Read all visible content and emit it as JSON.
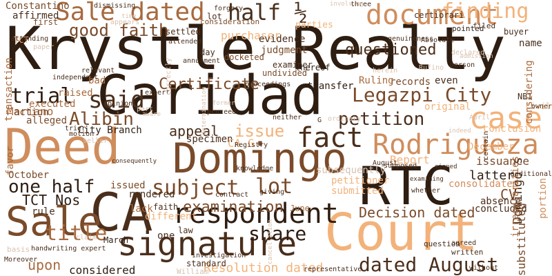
{
  "palette": {
    "background": "#ffffff",
    "darkest": "#2e1d11",
    "dark": "#4a2e1b",
    "medium": "#7a4b2a",
    "warm": "#a86a3e",
    "light": "#cf8d5c",
    "lightest": "#f2b27a",
    "pale": "#d9c2ae"
  },
  "words": [
    {
      "text": "Krystle Realty",
      "color": "darkest",
      "vertical": false
    },
    {
      "text": "Caridad",
      "color": "darkest",
      "vertical": false
    },
    {
      "text": "Deed",
      "color": "light",
      "vertical": false
    },
    {
      "text": "Domingo",
      "color": "medium",
      "vertical": false
    },
    {
      "text": "RTC",
      "color": "darkest",
      "vertical": false
    },
    {
      "text": "CA",
      "color": "dark",
      "vertical": false
    },
    {
      "text": "Court",
      "color": "lightest",
      "vertical": false
    },
    {
      "text": "Sale",
      "color": "medium",
      "vertical": false
    },
    {
      "text": "signature",
      "color": "dark",
      "vertical": false
    },
    {
      "text": "respondent",
      "color": "darkest",
      "vertical": false
    },
    {
      "text": "Rodrigueza",
      "color": "light",
      "vertical": false
    },
    {
      "text": "case",
      "color": "lightest",
      "vertical": false
    },
    {
      "text": "document",
      "color": "light",
      "vertical": false
    },
    {
      "text": "Sale dated",
      "color": "warm",
      "vertical": false
    },
    {
      "text": "fact",
      "color": "dark",
      "vertical": false
    },
    {
      "text": "subject",
      "color": "medium",
      "vertical": false
    },
    {
      "text": "lot",
      "color": "medium",
      "vertical": false
    },
    {
      "text": "said",
      "color": "dark",
      "vertical": false
    },
    {
      "text": "dated August",
      "color": "dark",
      "vertical": false
    },
    {
      "text": "title",
      "color": "warm",
      "vertical": false
    },
    {
      "text": "share",
      "color": "darkest",
      "vertical": false
    },
    {
      "text": "Legazpi City",
      "color": "medium",
      "vertical": false
    },
    {
      "text": "petition",
      "color": "dark",
      "vertical": false
    },
    {
      "text": "finding",
      "color": "lightest",
      "vertical": false
    },
    {
      "text": "half ½",
      "color": "dark",
      "vertical": false
    },
    {
      "text": "one half",
      "color": "darkest",
      "vertical": false
    },
    {
      "text": "good faith",
      "color": "medium",
      "vertical": false
    },
    {
      "text": "Certificate",
      "color": "medium",
      "vertical": false
    },
    {
      "text": "trial",
      "color": "darkest",
      "vertical": false
    },
    {
      "text": "Alibin",
      "color": "medium",
      "vertical": false
    },
    {
      "text": "issue",
      "color": "lightest",
      "vertical": false
    },
    {
      "text": "appeal",
      "color": "dark",
      "vertical": false
    },
    {
      "text": "examination",
      "color": "medium",
      "vertical": false
    },
    {
      "text": "questioned",
      "color": "dark",
      "vertical": false
    },
    {
      "text": "Decision dated",
      "color": "medium",
      "vertical": false
    },
    {
      "text": "Constantino",
      "color": "medium",
      "vertical": false
    },
    {
      "text": "affirmed",
      "color": "dark",
      "vertical": false
    },
    {
      "text": "TCT Nos",
      "color": "darkest",
      "vertical": false
    },
    {
      "text": "upon",
      "color": "warm",
      "vertical": false
    },
    {
      "text": "Resolution dated",
      "color": "lightest",
      "vertical": false
    },
    {
      "text": "considered",
      "color": "darkest",
      "vertical": false
    },
    {
      "text": "purchaser",
      "color": "lightest",
      "vertical": false
    },
    {
      "text": "evidence",
      "color": "dark",
      "vertical": false
    },
    {
      "text": "judgment",
      "color": "medium",
      "vertical": false
    },
    {
      "text": "transfer",
      "color": "darkest",
      "vertical": false
    },
    {
      "text": "records",
      "color": "medium",
      "vertical": false
    },
    {
      "text": "Ruling",
      "color": "warm",
      "vertical": false
    },
    {
      "text": "even",
      "color": "dark",
      "vertical": false
    },
    {
      "text": "CV",
      "color": "medium",
      "vertical": false
    },
    {
      "text": "latter",
      "color": "darkest",
      "vertical": false
    },
    {
      "text": "issuance",
      "color": "medium",
      "vertical": false
    },
    {
      "text": "Report",
      "color": "lightest",
      "vertical": false
    },
    {
      "text": "December",
      "color": "lightest",
      "vertical": false
    },
    {
      "text": "conclusion",
      "color": "lightest",
      "vertical": false
    },
    {
      "text": "consolidated",
      "color": "light",
      "vertical": false
    },
    {
      "text": "concluded",
      "color": "dark",
      "vertical": false
    },
    {
      "text": "absence",
      "color": "dark",
      "vertical": false
    },
    {
      "text": "Mariano",
      "color": "warm",
      "vertical": false
    },
    {
      "text": "action",
      "color": "medium",
      "vertical": false
    },
    {
      "text": "alleged",
      "color": "medium",
      "vertical": false
    },
    {
      "text": "executed",
      "color": "warm",
      "vertical": false
    },
    {
      "text": "raised",
      "color": "warm",
      "vertical": false
    },
    {
      "text": "City Branch",
      "color": "darkest",
      "vertical": false
    },
    {
      "text": "October",
      "color": "medium",
      "vertical": false
    },
    {
      "text": "rendered",
      "color": "dark",
      "vertical": false
    },
    {
      "text": "issued",
      "color": "medium",
      "vertical": false
    },
    {
      "text": "rule",
      "color": "dark",
      "vertical": false
    },
    {
      "text": "lack",
      "color": "warm",
      "vertical": false
    },
    {
      "text": "different",
      "color": "lightest",
      "vertical": false
    },
    {
      "text": "law",
      "color": "dark",
      "vertical": false
    },
    {
      "text": "one",
      "color": "dark",
      "vertical": false
    },
    {
      "text": "faith",
      "color": "dark",
      "vertical": false
    },
    {
      "text": "March",
      "color": "darkest",
      "vertical": false
    },
    {
      "text": "June",
      "color": "warm",
      "vertical": false
    },
    {
      "text": "submitted",
      "color": "lightest",
      "vertical": false
    },
    {
      "text": "petitioner",
      "color": "lightest",
      "vertical": false
    },
    {
      "text": "specimen",
      "color": "dark",
      "vertical": false
    },
    {
      "text": "CA G",
      "color": "lightest",
      "vertical": false
    },
    {
      "text": "first",
      "color": "medium",
      "vertical": false
    },
    {
      "text": "TCT",
      "color": "lightest",
      "vertical": false
    },
    {
      "text": "transaction",
      "color": "warm",
      "vertical": true
    },
    {
      "text": "favor",
      "color": "warm",
      "vertical": true
    },
    {
      "text": "Domingo s",
      "color": "dark",
      "vertical": true
    },
    {
      "text": "substituted",
      "color": "medium",
      "vertical": true
    },
    {
      "text": "portion",
      "color": "light",
      "vertical": true
    },
    {
      "text": "settled",
      "color": "dark",
      "vertical": false
    },
    {
      "text": "consideration",
      "color": "medium",
      "vertical": false
    },
    {
      "text": "docketed",
      "color": "medium",
      "vertical": false
    },
    {
      "text": "undivided",
      "color": "medium",
      "vertical": false
    },
    {
      "text": "examiner",
      "color": "dark",
      "vertical": false
    },
    {
      "text": "thereof",
      "color": "darkest",
      "vertical": false
    },
    {
      "text": "pointed",
      "color": "darkest",
      "vertical": false
    },
    {
      "text": "filed",
      "color": "dark",
      "vertical": false
    },
    {
      "text": "buyer",
      "color": "dark",
      "vertical": false
    },
    {
      "text": "name",
      "color": "dark",
      "vertical": false
    },
    {
      "text": "NBI",
      "color": "dark",
      "vertical": false
    },
    {
      "text": "Civil",
      "color": "lightest",
      "vertical": false
    },
    {
      "text": "original",
      "color": "lightest",
      "vertical": false
    },
    {
      "text": "parties",
      "color": "lightest",
      "vertical": false
    },
    {
      "text": "certiorari",
      "color": "dark",
      "vertical": false
    },
    {
      "text": "lot",
      "color": "dark",
      "vertical": false
    },
    {
      "text": "forgery",
      "color": "dark",
      "vertical": false
    },
    {
      "text": "three",
      "color": "dark",
      "vertical": false
    },
    {
      "text": "involving",
      "color": "pale",
      "vertical": false
    },
    {
      "text": "dismissing",
      "color": "dark",
      "vertical": false
    },
    {
      "text": "time",
      "color": "pale",
      "vertical": false
    },
    {
      "text": "appears",
      "color": "pale",
      "vertical": false
    },
    {
      "text": "Absolute",
      "color": "dark",
      "vertical": false
    },
    {
      "text": "genuineness",
      "color": "dark",
      "vertical": false
    },
    {
      "text": "attended",
      "color": "dark",
      "vertical": false
    },
    {
      "text": "annulment",
      "color": "dark",
      "vertical": false
    },
    {
      "text": "day",
      "color": "dark",
      "vertical": false
    },
    {
      "text": "relevant",
      "color": "dark",
      "vertical": false
    },
    {
      "text": "independent",
      "color": "dark",
      "vertical": false
    },
    {
      "text": "bad",
      "color": "warm",
      "vertical": false
    },
    {
      "text": "expert",
      "color": "dark",
      "vertical": false
    },
    {
      "text": "opinion",
      "color": "dark",
      "vertical": false
    },
    {
      "text": "part",
      "color": "pale",
      "vertical": false
    },
    {
      "text": "aware",
      "color": "pale",
      "vertical": false
    },
    {
      "text": "proceed",
      "color": "dark",
      "vertical": false
    },
    {
      "text": "former",
      "color": "pale",
      "vertical": false
    },
    {
      "text": "neither",
      "color": "dark",
      "vertical": false
    },
    {
      "text": "G",
      "color": "dark",
      "vertical": false
    },
    {
      "text": "proceedings",
      "color": "dark",
      "vertical": false
    },
    {
      "text": "motion",
      "color": "dark",
      "vertical": false
    },
    {
      "text": "seller",
      "color": "pale",
      "vertical": false
    },
    {
      "text": "consequently",
      "color": "dark",
      "vertical": false
    },
    {
      "text": "Registry",
      "color": "dark",
      "vertical": false
    },
    {
      "text": "knowledge",
      "color": "dark",
      "vertical": false
    },
    {
      "text": "giving",
      "color": "dark",
      "vertical": false
    },
    {
      "text": "contract",
      "color": "dark",
      "vertical": false
    },
    {
      "text": "standard",
      "color": "dark",
      "vertical": false
    },
    {
      "text": "William",
      "color": "pale",
      "vertical": false
    },
    {
      "text": "investigation",
      "color": "dark",
      "vertical": false
    },
    {
      "text": "claim",
      "color": "pale",
      "vertical": false
    },
    {
      "text": "handwriting expert",
      "color": "dark",
      "vertical": false
    },
    {
      "text": "basis",
      "color": "pale",
      "vertical": false
    },
    {
      "text": "Moreover",
      "color": "dark",
      "vertical": false
    },
    {
      "text": "paper",
      "color": "pale",
      "vertical": false
    },
    {
      "text": "attending",
      "color": "dark",
      "vertical": false
    },
    {
      "text": "trier",
      "color": "dark",
      "vertical": false
    },
    {
      "text": "question",
      "color": "dark",
      "vertical": false
    },
    {
      "text": "agreed",
      "color": "dark",
      "vertical": false
    },
    {
      "text": "written",
      "color": "dark",
      "vertical": false
    },
    {
      "text": "without",
      "color": "dark",
      "vertical": false
    },
    {
      "text": "representative",
      "color": "dark",
      "vertical": false
    },
    {
      "text": "supposed",
      "color": "dark",
      "vertical": false
    },
    {
      "text": "August",
      "color": "dark",
      "vertical": false
    },
    {
      "text": "examining",
      "color": "dark",
      "vertical": false
    },
    {
      "text": "whether",
      "color": "dark",
      "vertical": false
    },
    {
      "text": "signed",
      "color": "dark",
      "vertical": false
    },
    {
      "text": "person",
      "color": "dark",
      "vertical": false
    },
    {
      "text": "declared",
      "color": "pale",
      "vertical": false
    },
    {
      "text": "admission",
      "color": "pale",
      "vertical": false
    },
    {
      "text": "additional",
      "color": "dark",
      "vertical": false
    },
    {
      "text": "owner",
      "color": "dark",
      "vertical": false
    },
    {
      "text": "Rufino",
      "color": "pale",
      "vertical": false
    },
    {
      "text": "herein",
      "color": "pale",
      "vertical": false
    },
    {
      "text": "April",
      "color": "pale",
      "vertical": false
    },
    {
      "text": "indeed",
      "color": "pale",
      "vertical": false
    },
    {
      "text": "certain",
      "color": "dark",
      "vertical": true
    },
    {
      "text": "considering",
      "color": "warm",
      "vertical": true
    },
    {
      "text": "irregularities",
      "color": "warm",
      "vertical": true
    },
    {
      "text": "subsequently",
      "color": "pale",
      "vertical": false
    },
    {
      "text": "ordinary",
      "color": "pale",
      "vertical": false
    },
    {
      "text": "cancellation",
      "color": "pale",
      "vertical": true
    },
    {
      "text": "correctly",
      "color": "pale",
      "vertical": true
    },
    {
      "text": "determination",
      "color": "pale",
      "vertical": true
    }
  ]
}
